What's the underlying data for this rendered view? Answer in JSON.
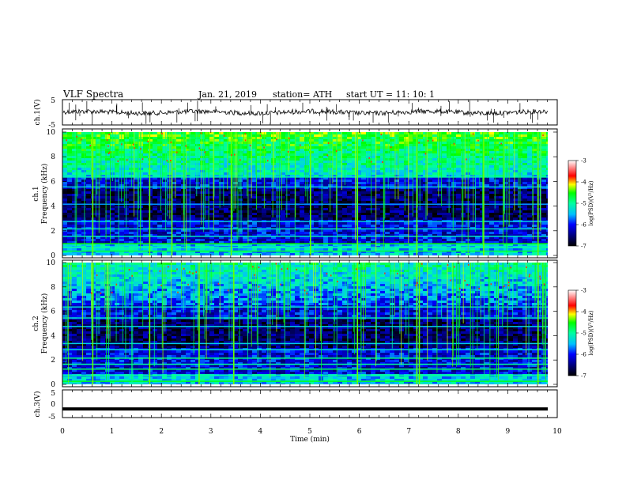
{
  "header": {
    "title": "VLF  Spectra",
    "date": "Jan. 21, 2019",
    "station": "station= ATH",
    "start": "start  UT  =   11: 10: 1"
  },
  "chart_data": [
    {
      "type": "line",
      "name": "ch1-waveform",
      "ylabel": "ch.1(V)",
      "ylim": [
        -5,
        5
      ],
      "yticks": [
        "5",
        "-5"
      ],
      "xlim": [
        0,
        10
      ],
      "description_level": 0.0
    },
    {
      "type": "heatmap",
      "name": "ch1-spectrogram",
      "ylabel_line1": "ch.1",
      "ylabel_line2": "Frequency  (kHz)",
      "ylim": [
        0,
        10
      ],
      "yticks": [
        "0",
        "2",
        "4",
        "6",
        "8",
        "10"
      ],
      "xlim": [
        0,
        9.83
      ],
      "colorbar": {
        "label": "log(PSD)(V²/Hz)",
        "range": [
          -7,
          -3
        ],
        "ticks": [
          "-3",
          "-4",
          "-5",
          "-6",
          "-7"
        ]
      }
    },
    {
      "type": "heatmap",
      "name": "ch2-spectrogram",
      "ylabel_line1": "ch.2",
      "ylabel_line2": "Frequency  (kHz)",
      "ylim": [
        0,
        10
      ],
      "yticks": [
        "0",
        "2",
        "4",
        "6",
        "8",
        "10"
      ],
      "xlim": [
        0,
        9.83
      ],
      "colorbar": {
        "label": "log(PSD)(V²/Hz)",
        "range": [
          -7,
          -3
        ],
        "ticks": [
          "-3",
          "-4",
          "-5",
          "-6",
          "-7"
        ]
      }
    },
    {
      "type": "line",
      "name": "ch3-waveform",
      "ylabel": "ch.3(V)",
      "ylim": [
        -5,
        5
      ],
      "yticks": [
        "5",
        "0",
        "-5"
      ],
      "xlim": [
        0,
        10
      ],
      "level": -1.5
    }
  ],
  "xaxis": {
    "label": "Time  (min)",
    "ticks": [
      "0",
      "1",
      "2",
      "3",
      "4",
      "5",
      "6",
      "7",
      "8",
      "9",
      "10"
    ]
  },
  "colors": {
    "scale": [
      "#000000",
      "#00008b",
      "#0000ff",
      "#00bfff",
      "#00ffff",
      "#00ff00",
      "#ffff00",
      "#ff0000",
      "#ffffff"
    ]
  }
}
